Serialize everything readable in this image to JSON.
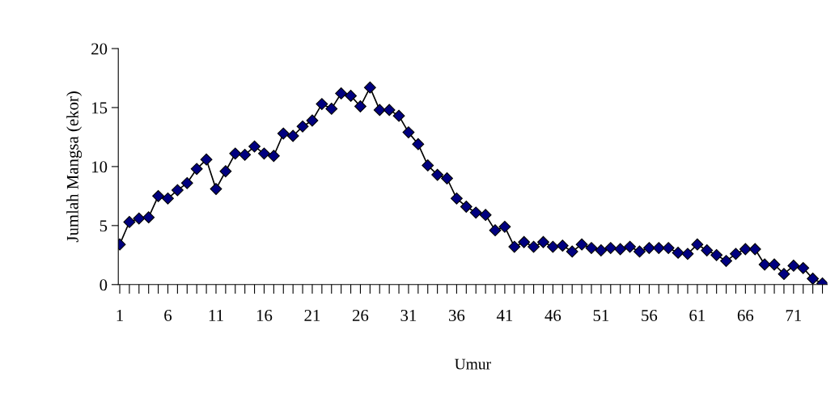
{
  "chart_data": {
    "type": "line",
    "xlabel": "Umur",
    "ylabel": "Jumlah Mangsa (ekor)",
    "categories": [
      "1",
      null,
      null,
      null,
      null,
      "6",
      null,
      null,
      null,
      null,
      "11",
      null,
      null,
      null,
      null,
      "16",
      null,
      null,
      null,
      null,
      "21",
      null,
      null,
      null,
      null,
      "26",
      null,
      null,
      null,
      null,
      "31",
      null,
      null,
      null,
      null,
      "36",
      null,
      null,
      null,
      null,
      "41",
      null,
      null,
      null,
      null,
      "46",
      null,
      null,
      null,
      null,
      "51",
      null,
      null,
      null,
      null,
      "56",
      null,
      null,
      null,
      null,
      "61",
      null,
      null,
      null,
      null,
      "66",
      null,
      null,
      null,
      null,
      "71",
      null,
      null,
      null
    ],
    "series": [
      {
        "color": "#000080",
        "values": [
          3.4,
          5.3,
          5.6,
          5.7,
          7.5,
          7.3,
          8.0,
          8.6,
          9.8,
          10.6,
          8.1,
          9.6,
          11.1,
          11.0,
          11.7,
          11.1,
          10.9,
          12.8,
          12.6,
          13.4,
          13.9,
          15.3,
          14.9,
          16.2,
          16.0,
          15.1,
          16.7,
          14.8,
          14.8,
          14.3,
          12.9,
          11.9,
          10.1,
          9.3,
          9.0,
          7.3,
          6.6,
          6.1,
          5.9,
          4.6,
          4.9,
          3.2,
          3.6,
          3.2,
          3.6,
          3.2,
          3.3,
          2.8,
          3.4,
          3.1,
          2.9,
          3.1,
          3.0,
          3.2,
          2.8,
          3.1,
          3.1,
          3.1,
          2.7,
          2.6,
          3.4,
          2.9,
          2.5,
          2.0,
          2.6,
          3.0,
          3.0,
          1.7,
          1.7,
          0.9,
          1.6,
          1.4,
          0.5,
          0.1
        ]
      }
    ],
    "ylim": [
      0,
      20
    ],
    "yticks": [
      0,
      5,
      10,
      15,
      20
    ],
    "grid": false,
    "marker": "diamond",
    "line_style": "solid"
  }
}
